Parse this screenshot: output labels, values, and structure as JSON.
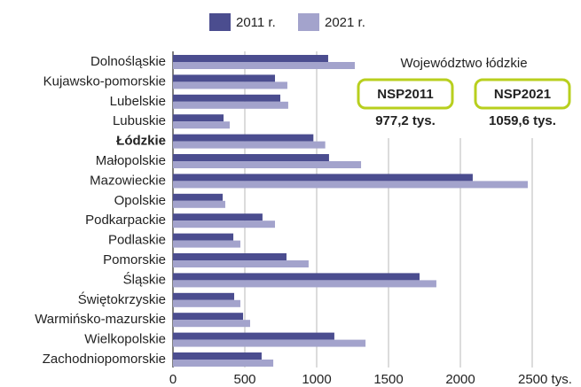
{
  "chart_data": {
    "type": "hbar",
    "categories": [
      "Dolnośląskie",
      "Kujawsko-pomorskie",
      "Lubelskie",
      "Lubuskie",
      "Łódzkie",
      "Małopolskie",
      "Mazowieckie",
      "Opolskie",
      "Podkarpackie",
      "Podlaskie",
      "Pomorskie",
      "Śląskie",
      "Świętokrzyskie",
      "Warmińsko-mazurskie",
      "Wielkopolskie",
      "Zachodniopomorskie"
    ],
    "highlight": "Łódzkie",
    "series": [
      {
        "name": "2011 r.",
        "color": "#4b4d8f",
        "values": [
          1080,
          710,
          747,
          352,
          977.2,
          1086,
          2086,
          346,
          623,
          420,
          790,
          1716,
          426,
          488,
          1123,
          617
        ]
      },
      {
        "name": "2021 r.",
        "color": "#a3a3cc",
        "values": [
          1272,
          796,
          802,
          395,
          1059.6,
          1309,
          2469,
          364,
          710,
          469,
          944,
          1833,
          469,
          537,
          1340,
          698
        ]
      }
    ],
    "xlim": [
      0,
      2500
    ],
    "xticks": [
      0,
      500,
      1000,
      1500,
      2000,
      {
        "value": 2500,
        "label": "2500 tys."
      }
    ],
    "grid": true,
    "legend": "top",
    "annotation": {
      "title": "Województwo łódzkie",
      "items": [
        {
          "label": "NSP2011",
          "value_label": "977,2 tys."
        },
        {
          "label": "NSP2021",
          "value_label": "1059,6 tys."
        }
      ],
      "border_color": "#b8cf1e"
    }
  }
}
